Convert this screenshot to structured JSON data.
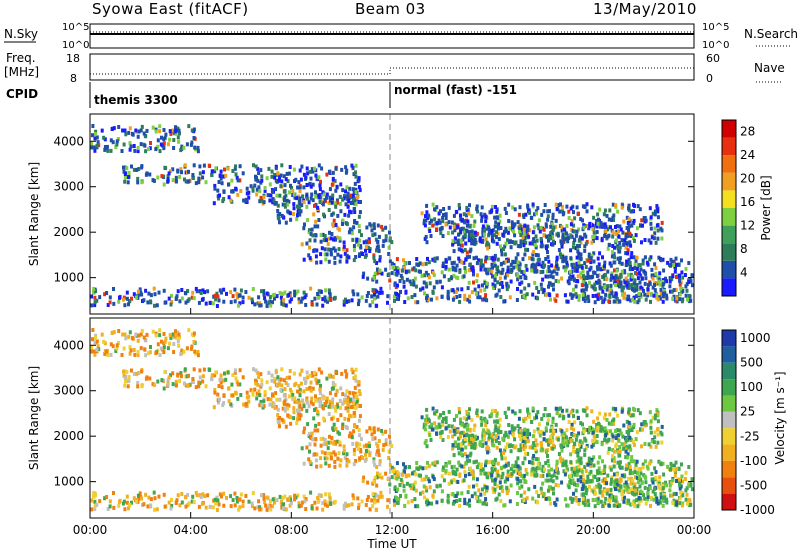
{
  "header": {
    "station": "Syowa East (fitACF)",
    "beam": "Beam 03",
    "date": "13/May/2010"
  },
  "panels": {
    "nsky_label": "N.Sky",
    "nsky_ticks": [
      "10^5",
      "10^0"
    ],
    "nsearch_label": "N.Search",
    "freq_label": "Freq.",
    "freq_unit": "[MHz]",
    "freq_ticks": [
      "18",
      "8"
    ],
    "nave_label": "Nave",
    "nave_ticks": [
      "60",
      "0"
    ],
    "cpid_label": "CPID",
    "cpid_segments": [
      "themis 3300",
      "normal (fast) -151"
    ]
  },
  "colors": {
    "power": [
      "#1a1aff",
      "#1f4fa8",
      "#2e7d5a",
      "#3ea05a",
      "#7fd040",
      "#f4e020",
      "#f0a020",
      "#f07010",
      "#e83010",
      "#d00000"
    ],
    "velocity_pos": [
      "#1e3aa8",
      "#1f5fa0",
      "#2a8a6a",
      "#3fa650",
      "#6cc840"
    ],
    "velocity_mid": "#c0c0c0",
    "velocity_neg": [
      "#f0d030",
      "#f0b020",
      "#f08010",
      "#e85010",
      "#d01010"
    ]
  },
  "chart_data": [
    {
      "type": "heatmap",
      "name": "power",
      "ylabel": "Slant Range [km]",
      "yticks": [
        "1000",
        "2000",
        "3000",
        "4000"
      ],
      "ylim": [
        200,
        4600
      ],
      "xlim": [
        0,
        24
      ],
      "xticks": [
        "00:00",
        "04:00",
        "08:00",
        "12:00",
        "16:00",
        "20:00",
        "00:00"
      ],
      "colorbar_label": "Power [dB]",
      "colorbar_ticks": [
        "4",
        "8",
        "12",
        "16",
        "20",
        "24",
        "28"
      ],
      "colorbar_range": [
        0,
        30
      ]
    },
    {
      "type": "heatmap",
      "name": "velocity",
      "ylabel": "Slant Range [km]",
      "yticks": [
        "1000",
        "2000",
        "3000",
        "4000"
      ],
      "ylim": [
        200,
        4600
      ],
      "xlim": [
        0,
        24
      ],
      "xticks": [
        "00:00",
        "04:00",
        "08:00",
        "12:00",
        "16:00",
        "20:00",
        "00:00"
      ],
      "xlabel": "Time UT",
      "colorbar_label": "Velocity [m s⁻¹]",
      "colorbar_ticks": [
        "1000",
        "500",
        "100",
        "25",
        "-25",
        "-100",
        "-500",
        "-1000"
      ]
    }
  ]
}
